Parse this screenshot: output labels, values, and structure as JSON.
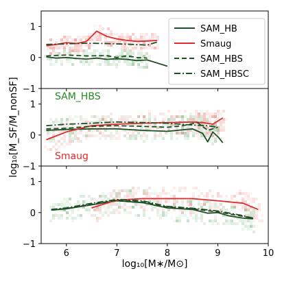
{
  "chart_data": {
    "type": "line",
    "xlabel": "log₁₀[M∗/M⊙]",
    "ylabel": "log₁₀[M_SF/M_nonSF]",
    "xlim": [
      5.5,
      10
    ],
    "ylim": [
      -1,
      1.5
    ],
    "x_ticks": [
      6,
      7,
      8,
      9,
      10
    ],
    "y_ticks": [
      -1,
      0,
      1
    ],
    "colors": {
      "SAM_HB": "#1f4d24",
      "Smaug": "#e02a2a",
      "SAM_HBS": "#1f4d24",
      "SAM_HBSC": "#1f4d24"
    },
    "legend": {
      "placement": "top-right of top panel",
      "entries": [
        "SAM_HB",
        "Smaug",
        "SAM_HBS",
        "SAM_HBSC"
      ]
    },
    "panels": [
      {
        "name": "top",
        "annotations": [],
        "series": [
          {
            "name": "SAM_HB",
            "style": "solid",
            "x": [
              5.6,
              5.8,
              6.0,
              6.2,
              6.4,
              6.6,
              6.8,
              7.0,
              7.2,
              7.4,
              7.6,
              7.8,
              8.0
            ],
            "y": [
              0.02,
              -0.02,
              0.0,
              -0.03,
              -0.05,
              -0.02,
              -0.06,
              -0.04,
              -0.06,
              -0.1,
              -0.08,
              -0.18,
              -0.28
            ]
          },
          {
            "name": "Smaug",
            "style": "solid",
            "x": [
              5.6,
              5.8,
              6.0,
              6.2,
              6.4,
              6.6,
              6.8,
              7.0,
              7.2,
              7.4,
              7.6,
              7.8
            ],
            "y": [
              0.38,
              0.42,
              0.48,
              0.45,
              0.52,
              0.85,
              0.68,
              0.6,
              0.55,
              0.52,
              0.53,
              0.55
            ]
          },
          {
            "name": "SAM_HBS",
            "style": "dashed",
            "x": [
              5.6,
              6.0,
              6.4,
              6.8,
              7.0,
              7.2,
              7.4,
              7.6
            ],
            "y": [
              0.05,
              0.08,
              0.05,
              0.06,
              0.0,
              0.05,
              0.0,
              -0.02
            ]
          },
          {
            "name": "SAM_HBSC",
            "style": "dashdot",
            "x": [
              5.6,
              6.0,
              6.4,
              6.8,
              7.2,
              7.6,
              7.8
            ],
            "y": [
              0.42,
              0.44,
              0.46,
              0.45,
              0.43,
              0.4,
              0.5
            ]
          }
        ]
      },
      {
        "name": "middle",
        "annotations": [
          {
            "text": "SAM_HBS",
            "color": "#1e8a1e"
          },
          {
            "text": "Smaug",
            "color": "#e02a2a"
          }
        ],
        "series": [
          {
            "name": "SAM_HB",
            "style": "solid",
            "x": [
              5.6,
              6.0,
              6.5,
              7.0,
              7.5,
              8.0,
              8.5,
              8.7,
              8.8,
              8.9,
              9.0,
              9.1
            ],
            "y": [
              0.15,
              0.18,
              0.2,
              0.2,
              0.15,
              0.12,
              0.2,
              0.05,
              -0.22,
              0.1,
              -0.05,
              -0.25
            ]
          },
          {
            "name": "Smaug",
            "style": "solid",
            "x": [
              5.6,
              6.0,
              6.5,
              7.0,
              7.5,
              8.0,
              8.5,
              8.7,
              8.9,
              9.1
            ],
            "y": [
              -0.15,
              0.1,
              0.3,
              0.35,
              0.38,
              0.4,
              0.42,
              0.4,
              0.35,
              0.55
            ]
          },
          {
            "name": "SAM_HBS",
            "style": "dashed",
            "x": [
              5.6,
              6.0,
              6.5,
              7.0,
              7.5,
              8.0,
              8.3,
              8.6,
              8.8,
              9.0
            ],
            "y": [
              0.2,
              0.22,
              0.28,
              0.3,
              0.28,
              0.25,
              0.3,
              0.4,
              0.15,
              0.25
            ]
          },
          {
            "name": "SAM_HBSC",
            "style": "dashdot",
            "x": [
              5.6,
              6.0,
              6.5,
              7.0,
              7.5,
              8.0,
              8.5,
              8.8,
              9.0
            ],
            "y": [
              0.3,
              0.35,
              0.38,
              0.42,
              0.4,
              0.38,
              0.32,
              0.3,
              0.25
            ]
          }
        ]
      },
      {
        "name": "bottom",
        "annotations": [],
        "series": [
          {
            "name": "SAM_HB",
            "style": "solid",
            "x": [
              5.7,
              6.0,
              6.5,
              7.0,
              7.5,
              8.0,
              8.5,
              8.8,
              9.0,
              9.2,
              9.5,
              9.7
            ],
            "y": [
              0.08,
              0.12,
              0.25,
              0.38,
              0.32,
              0.15,
              0.1,
              -0.02,
              0.0,
              -0.1,
              -0.18,
              -0.2
            ]
          },
          {
            "name": "Smaug",
            "style": "solid",
            "x": [
              6.5,
              7.0,
              7.5,
              8.0,
              8.5,
              9.0,
              9.5,
              9.8
            ],
            "y": [
              0.15,
              0.4,
              0.45,
              0.45,
              0.45,
              0.38,
              0.3,
              0.1
            ]
          },
          {
            "name": "SAM_HBS",
            "style": "dashed",
            "x": [
              5.7,
              6.0,
              6.5,
              7.0,
              7.5,
              8.0,
              8.5,
              9.0,
              9.5,
              9.7
            ],
            "y": [
              0.08,
              0.13,
              0.27,
              0.4,
              0.35,
              0.18,
              0.12,
              0.02,
              -0.12,
              -0.18
            ]
          },
          {
            "name": "SAM_HBSC",
            "style": "dashdot",
            "x": [
              5.7,
              6.0,
              6.5,
              7.0,
              7.5,
              8.0,
              8.5,
              9.0,
              9.5,
              9.7
            ],
            "y": [
              0.1,
              0.15,
              0.3,
              0.42,
              0.38,
              0.2,
              0.14,
              0.05,
              -0.1,
              -0.18
            ]
          }
        ]
      }
    ]
  }
}
